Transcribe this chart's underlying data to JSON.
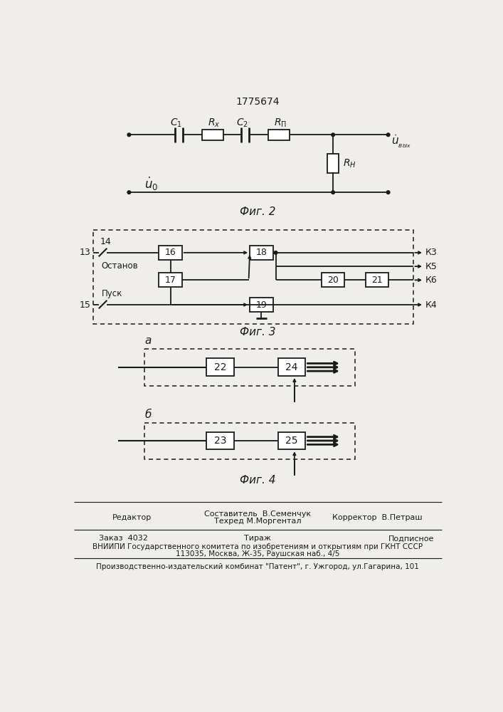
{
  "title": "1775674",
  "fig2_caption": "Фиг. 2",
  "fig3_caption": "Фиг. 3",
  "fig4_caption": "Фиг. 4",
  "bg_color": "#f0eeea",
  "line_color": "#1a1a1a"
}
